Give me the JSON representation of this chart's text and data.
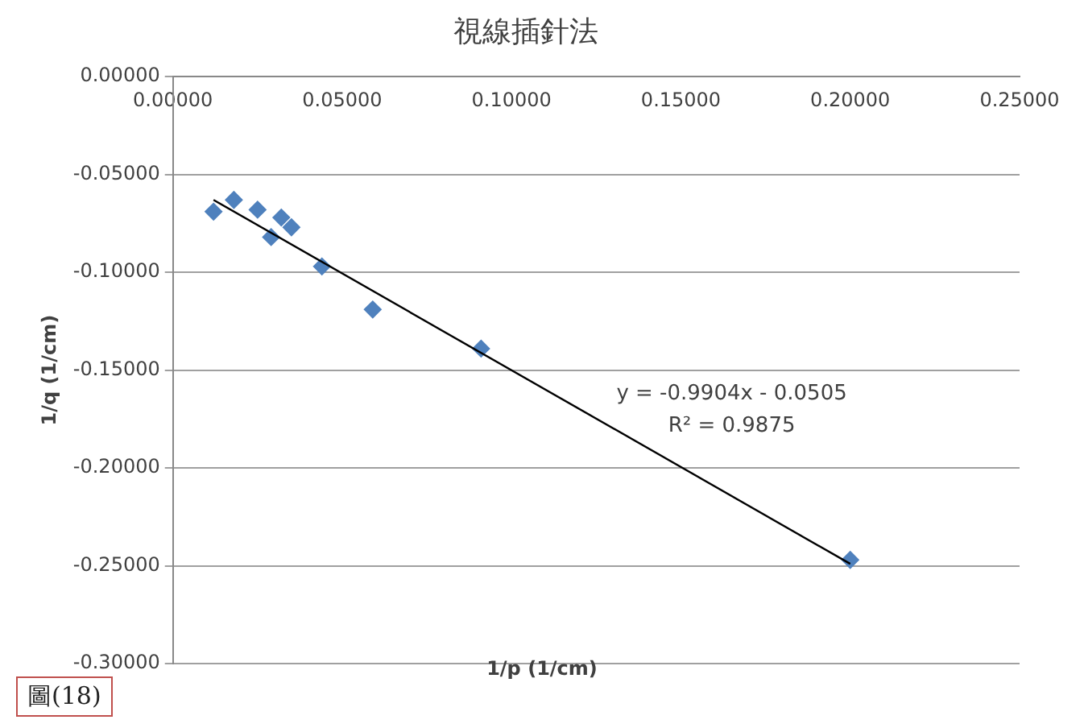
{
  "chart_data": {
    "type": "scatter",
    "title": "視線插針法",
    "xlabel": "1/p (1/cm)",
    "ylabel": "1/q (1/cm)",
    "xlim": [
      0,
      0.25
    ],
    "xticks": [
      {
        "value": 0,
        "label": "0.00000"
      },
      {
        "value": 0.05,
        "label": "0.05000"
      },
      {
        "value": 0.1,
        "label": "0.10000"
      },
      {
        "value": 0.15,
        "label": "0.15000"
      },
      {
        "value": 0.2,
        "label": "0.20000"
      },
      {
        "value": 0.25,
        "label": "0.25000"
      }
    ],
    "ylim": [
      -0.3,
      0
    ],
    "yticks": [
      {
        "value": 0,
        "label": "0.00000"
      },
      {
        "value": -0.05,
        "label": "-0.05000"
      },
      {
        "value": -0.1,
        "label": "-0.10000"
      },
      {
        "value": -0.15,
        "label": "-0.15000"
      },
      {
        "value": -0.2,
        "label": "-0.20000"
      },
      {
        "value": -0.25,
        "label": "-0.25000"
      },
      {
        "value": -0.3,
        "label": "-0.30000"
      }
    ],
    "grid": "y",
    "legend": false,
    "marker": "diamond",
    "series": [
      {
        "color": "#4f81bd",
        "x": [
          0.012,
          0.018,
          0.025,
          0.032,
          0.035,
          0.029,
          0.044,
          0.059,
          0.091,
          0.2
        ],
        "values": [
          -0.069,
          -0.063,
          -0.068,
          -0.072,
          -0.077,
          -0.082,
          -0.097,
          -0.119,
          -0.139,
          -0.247
        ]
      },
      {
        "type": "line",
        "color": "#000000",
        "marker": "none",
        "x": [
          0.012,
          0.2
        ],
        "values": [
          -0.063,
          -0.249
        ]
      }
    ],
    "annotations": [
      "y = -0.9904x - 0.0505",
      "R² = 0.9875",
      "圖(18)"
    ]
  }
}
